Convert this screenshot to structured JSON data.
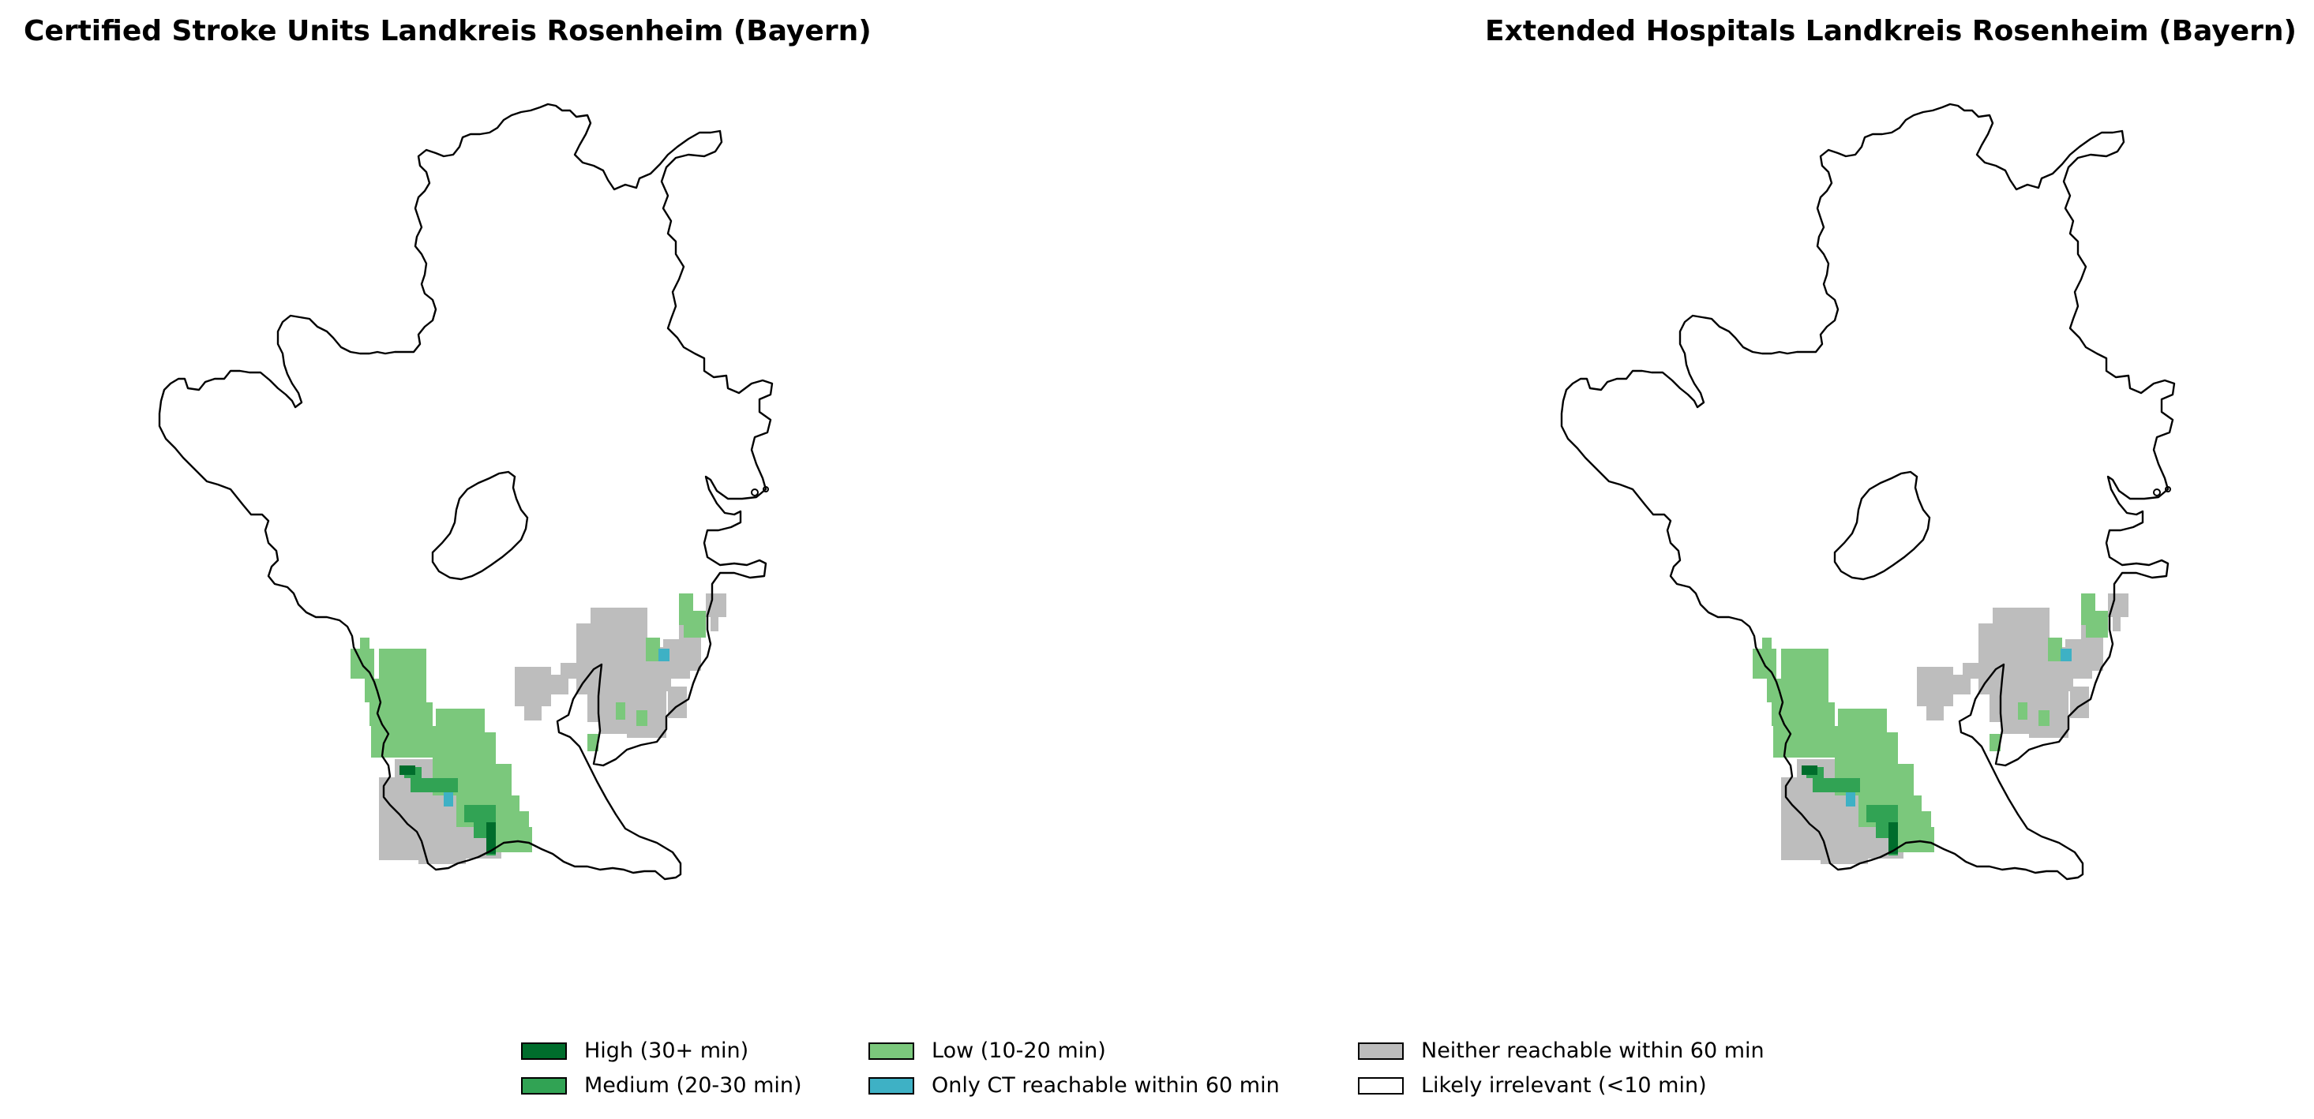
{
  "titles": {
    "left": "Certified Stroke Units Landkreis Rosenheim (Bayern)",
    "right": "Extended Hospitals Landkreis Rosenheim (Bayern)"
  },
  "colors": {
    "high": "#006d2c",
    "medium": "#31a354",
    "low": "#7bc87c",
    "ct_only": "#3eb1c5",
    "neither": "#bdbdbd",
    "irrelevant": "#ffffff",
    "boundary": "#000000"
  },
  "legend": [
    {
      "key": "high",
      "label": "High (30+ min)"
    },
    {
      "key": "medium",
      "label": "Medium (20-30 min)"
    },
    {
      "key": "low",
      "label": "Low (10-20 min)"
    },
    {
      "key": "ct_only",
      "label": "Only CT reachable within 60 min"
    },
    {
      "key": "neither",
      "label": "Neither reachable within 60 min"
    },
    {
      "key": "irrelevant",
      "label": "Likely irrelevant (<10 min)"
    }
  ]
}
